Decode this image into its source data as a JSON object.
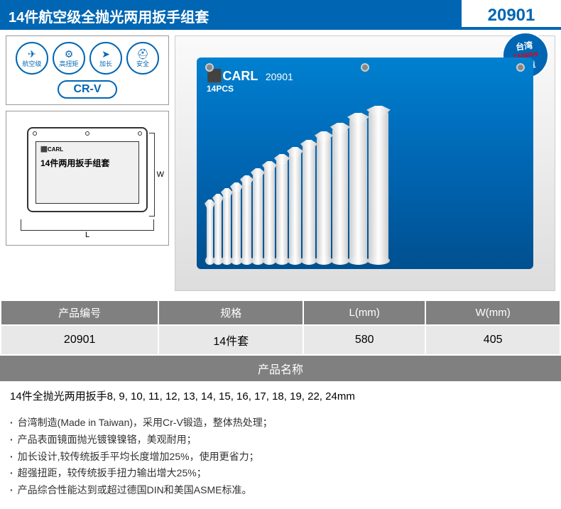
{
  "header": {
    "title": "14件航空级全抛光两用扳手组套",
    "code": "20901"
  },
  "badges": [
    {
      "icon": "✈",
      "label": "航空级"
    },
    {
      "icon": "⚙",
      "label": "高扭矩"
    },
    {
      "icon": "➤",
      "label": "加长"
    },
    {
      "icon": "⛑",
      "label": "安全"
    }
  ],
  "material": "CR-V",
  "dimension_diagram": {
    "brand": "⬛CARL",
    "label": "14件两用扳手组套",
    "width_sym": "W",
    "length_sym": "L"
  },
  "product": {
    "taiwan_top": "台湾",
    "taiwan_red": "TAIWAN",
    "taiwan_bottom": "制造",
    "pouch_brand": "⬛CARL",
    "pouch_code": "20901",
    "pouch_pcs": "14PCS",
    "wrench_heights": [
      78,
      86,
      94,
      102,
      112,
      122,
      132,
      142,
      152,
      162,
      174,
      186,
      200,
      210
    ],
    "wrench_widths": [
      9,
      10,
      11,
      12,
      13,
      14,
      15,
      16,
      17,
      18,
      20,
      22,
      25,
      28
    ]
  },
  "spec_table": {
    "headers": [
      "产品编号",
      "规格",
      "L(mm)",
      "W(mm)"
    ],
    "row": [
      "20901",
      "14件套",
      "580",
      "405"
    ]
  },
  "name_section": {
    "header": "产品名称",
    "content": "14件全抛光两用扳手8, 9, 10, 11, 12, 13, 14, 15, 16, 17, 18, 19, 22, 24mm"
  },
  "features": [
    "台湾制造(Made in Taiwan)，采用Cr-V锻造，整体热处理；",
    "产品表面镜面抛光镀镍镍铬，美观耐用；",
    "加长设计,较传统扳手平均长度增加25%，使用更省力；",
    "超强扭距，较传统扳手扭力输出增大25%；",
    "产品综合性能达到或超过德国DIN和美国ASME标准。"
  ],
  "colors": {
    "primary": "#0066b3",
    "grey_header": "#808080",
    "grey_cell": "#e8e8e8"
  }
}
